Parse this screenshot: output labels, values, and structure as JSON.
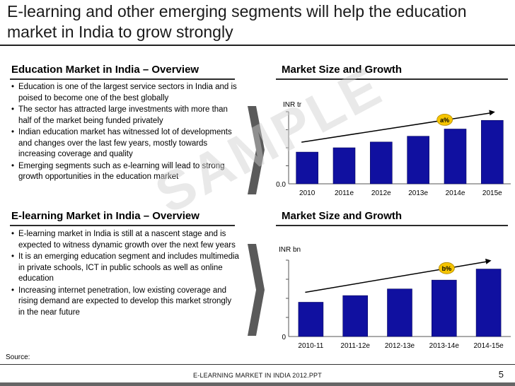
{
  "slide": {
    "title": "E-learning and other emerging segments will help the education market in India to grow strongly",
    "source_label": "Source:",
    "footer": "E-LEARNING MARKET IN INDIA 2012.PPT",
    "page_number": "5",
    "watermark": "SAMPLE"
  },
  "overview1": {
    "heading": "Education Market in India – Overview",
    "bullets": [
      "Education is one of the largest service sectors in India and is poised to become one of the best globally",
      "The sector has attracted large investments with more than half of the market being funded privately",
      "Indian education market has witnessed lot of developments and changes over the last few years, mostly towards increasing coverage and quality",
      "Emerging segments such as e-learning will lead to strong growth opportunities in the education market"
    ]
  },
  "overview2": {
    "heading": "E-learning Market in India – Overview",
    "bullets": [
      "E-learning market in India is still at a nascent stage and is expected to witness dynamic growth over the next few years",
      "It is an emerging education segment and includes multimedia in private schools, ICT in public schools as well as online education",
      "Increasing internet penetration, low existing coverage and rising demand are expected to develop this market strongly in the near future"
    ]
  },
  "chart_data": [
    {
      "type": "bar",
      "title": "Market Size and Growth",
      "ylabel": "INR tr",
      "y_origin_label": "0.0",
      "categories": [
        "2010",
        "2011e",
        "2012e",
        "2013e",
        "2014e",
        "2015e"
      ],
      "values": [
        2.2,
        2.5,
        2.9,
        3.3,
        3.8,
        4.4
      ],
      "ylim": [
        0,
        5
      ],
      "annotation": "a%",
      "color": "#1010a0"
    },
    {
      "type": "bar",
      "title": "Market Size and Growth",
      "ylabel": "INR bn",
      "y_origin_label": "0",
      "categories": [
        "2010-11",
        "2011-12e",
        "2012-13e",
        "2013-14e",
        "2014-15e"
      ],
      "values": [
        3.1,
        3.7,
        4.3,
        5.1,
        6.1
      ],
      "ylim": [
        0,
        6.9
      ],
      "annotation": "b%",
      "color": "#1010a0"
    }
  ],
  "colors": {
    "bar": "#1010a0",
    "badge": "#f5c400",
    "arrow": "#5a5a5a"
  }
}
